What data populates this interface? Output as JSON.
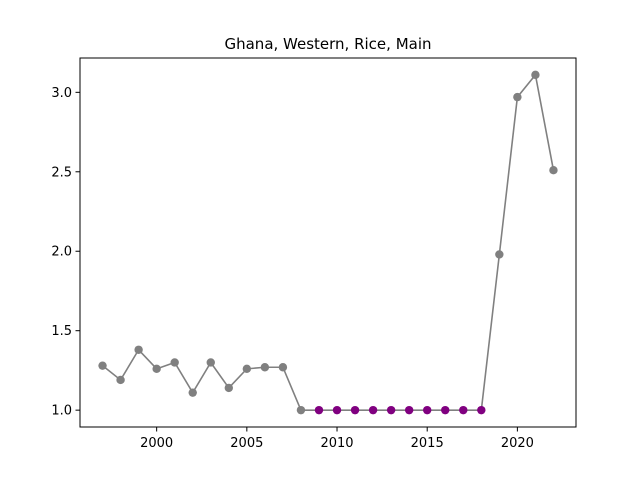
{
  "chart_data": {
    "type": "line",
    "title": "Ghana, Western, Rice, Main",
    "xlabel": "",
    "ylabel": "",
    "xlim": [
      1995.75,
      2023.25
    ],
    "ylim": [
      0.894,
      3.216
    ],
    "x_ticks": [
      2000,
      2005,
      2010,
      2015,
      2020
    ],
    "x_tick_labels": [
      "2000",
      "2005",
      "2010",
      "2015",
      "2020"
    ],
    "y_ticks": [
      1.0,
      1.5,
      2.0,
      2.5,
      3.0
    ],
    "y_tick_labels": [
      "1.0",
      "1.5",
      "2.0",
      "2.5",
      "3.0"
    ],
    "grid": false,
    "line_color": "#808080",
    "highlight_color": "#800080",
    "series": [
      {
        "x": [
          1997,
          1998,
          1999,
          2000,
          2001,
          2002,
          2003,
          2004,
          2005,
          2006,
          2007,
          2008,
          2009,
          2010,
          2011,
          2012,
          2013,
          2014,
          2015,
          2016,
          2017,
          2018,
          2019,
          2020,
          2021,
          2022
        ],
        "values": [
          1.28,
          1.19,
          1.38,
          1.26,
          1.3,
          1.11,
          1.3,
          1.14,
          1.26,
          1.27,
          1.27,
          1.0,
          1.0,
          1.0,
          1.0,
          1.0,
          1.0,
          1.0,
          1.0,
          1.0,
          1.0,
          1.0,
          1.98,
          2.97,
          3.11,
          2.51
        ],
        "highlighted": [
          false,
          false,
          false,
          false,
          false,
          false,
          false,
          false,
          false,
          false,
          false,
          false,
          true,
          true,
          true,
          true,
          true,
          true,
          true,
          true,
          true,
          true,
          false,
          false,
          false,
          false
        ]
      }
    ]
  }
}
